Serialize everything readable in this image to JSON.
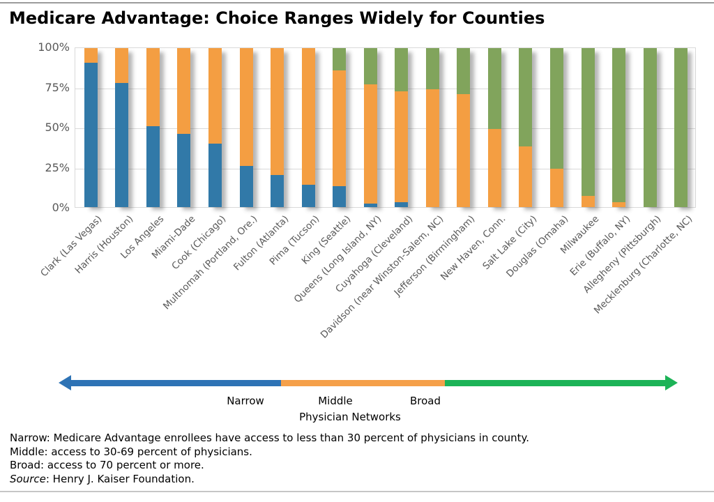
{
  "title": "Medicare Advantage: Choice Ranges Widely for Counties",
  "chart_data": {
    "type": "bar",
    "stacked": true,
    "title": "Medicare Advantage: Choice Ranges Widely for Counties",
    "xlabel": "Physician Networks",
    "ylabel": "",
    "ylim": [
      0,
      100
    ],
    "grid": true,
    "legend_position": "bottom-arrow",
    "categories": [
      "Clark (Las Vegas)",
      "Harris (Houston)",
      "Los Angeles",
      "Miami-Dade",
      "Cook (Chicago)",
      "Multnomah (Portland, Ore.)",
      "Fulton (Atlanta)",
      "Pima (Tucson)",
      "King (Seattle)",
      "Queens (Long Island, NY)",
      "Cuyahoga (Cleveland)",
      "Davidson (near Winston-Salem, NC)",
      "Jefferson (Birmingham)",
      "New Haven, Conn.",
      "Salt Lake (City)",
      "Douglas (Omaha)",
      "Milwaukee",
      "Erie (Buffalo, NY)",
      "Allegheny (Pittsburgh)",
      "Mecklenburg (Charlotte, NC)"
    ],
    "series": [
      {
        "name": "Narrow",
        "color": "#3179A8",
        "values": [
          91,
          78,
          51,
          46,
          40,
          26,
          20,
          14,
          13,
          2,
          3,
          0,
          0,
          0,
          0,
          0,
          0,
          0,
          0,
          0
        ]
      },
      {
        "name": "Middle",
        "color": "#F49E42",
        "values": [
          9,
          22,
          49,
          54,
          60,
          74,
          80,
          86,
          73,
          75,
          70,
          74,
          71,
          49,
          38,
          24,
          7,
          3,
          0,
          0
        ]
      },
      {
        "name": "Broad",
        "color": "#81A45C",
        "values": [
          0,
          0,
          0,
          0,
          0,
          0,
          0,
          0,
          14,
          23,
          27,
          26,
          29,
          51,
          62,
          76,
          93,
          97,
          100,
          100
        ]
      }
    ],
    "yticks": [
      {
        "label": "100%",
        "value": 100
      },
      {
        "label": "75%",
        "value": 75
      },
      {
        "label": "50%",
        "value": 50
      },
      {
        "label": "25%",
        "value": 25
      },
      {
        "label": "0%",
        "value": 0
      }
    ]
  },
  "arrow": {
    "narrow": "Narrow",
    "middle": "Middle",
    "broad": "Broad",
    "axis": "Physician Networks"
  },
  "colors": {
    "bar_narrow": "#3179A8",
    "bar_middle": "#F49E42",
    "bar_broad": "#81A45C",
    "arrow_narrow": "#2E73B5",
    "arrow_middle": "#F5A04A",
    "arrow_broad": "#1CB357",
    "axis_text": "#595959",
    "grid": "#D9D9D9"
  },
  "footnotes": {
    "narrow_note": "Narrow: Medicare Advantage enrollees have access to less than 30 percent of physicians in county.",
    "middle_note": "Middle: access to 30-69 percent of physicians.",
    "broad_note": "Broad: access to 70 percent or more.",
    "source_word": "Source",
    "source_rest": ": Henry J. Kaiser Foundation."
  }
}
